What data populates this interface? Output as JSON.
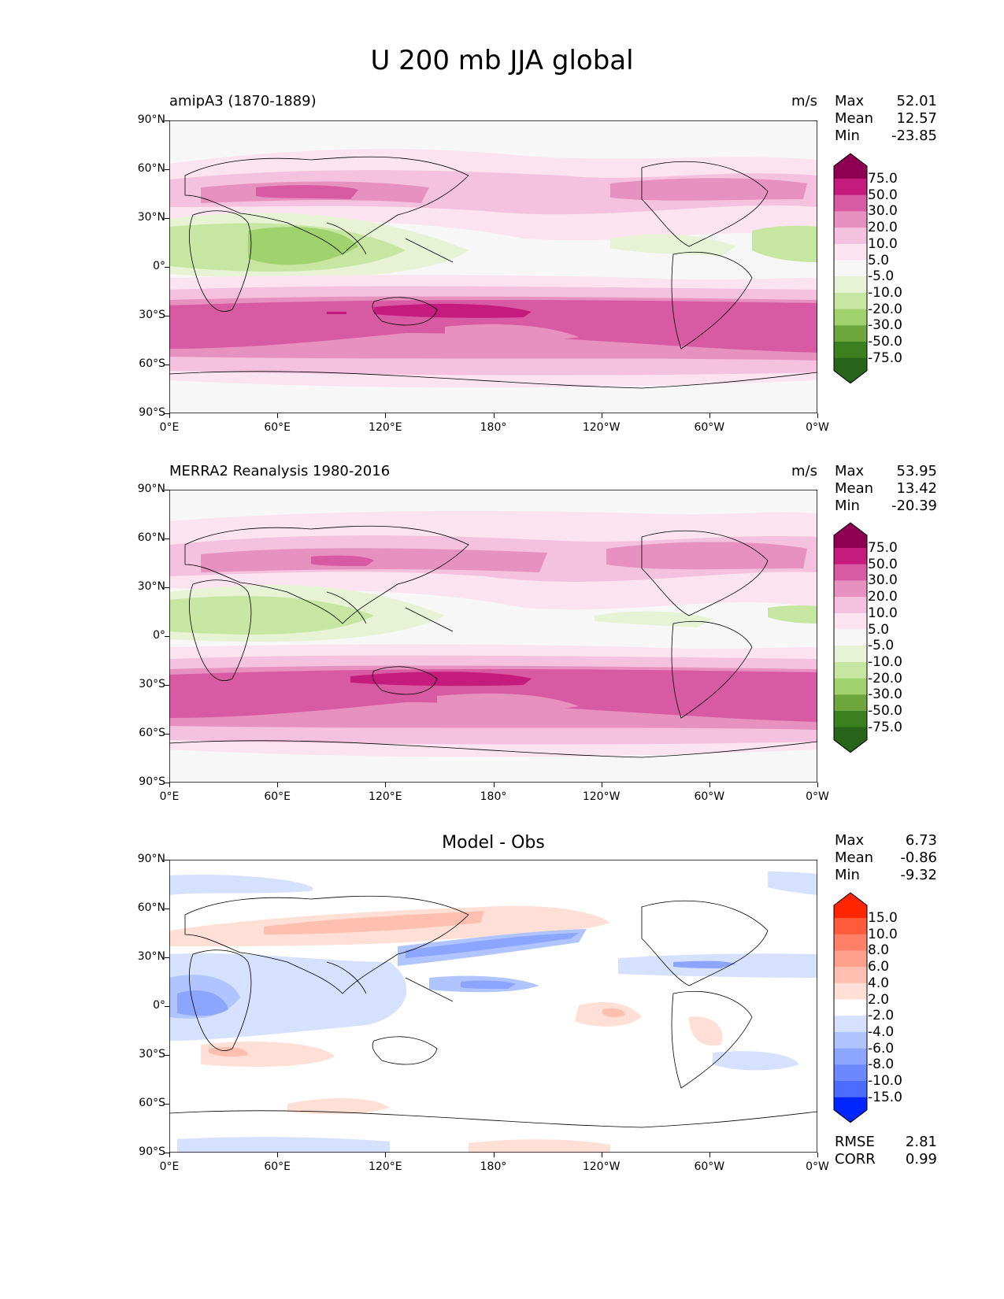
{
  "title": "U 200 mb JJA global",
  "y_ticks": [
    "90°N",
    "60°N",
    "30°N",
    "0°",
    "30°S",
    "60°S",
    "90°S"
  ],
  "x_ticks": [
    "0°E",
    "60°E",
    "120°E",
    "180°",
    "120°W",
    "60°W",
    "0°W"
  ],
  "panels": [
    {
      "title": "amipA3 (1870-1889)",
      "units": "m/s",
      "stats": {
        "max_label": "Max",
        "max": "52.01",
        "mean_label": "Mean",
        "mean": "12.57",
        "min_label": "Min",
        "min": "-23.85"
      }
    },
    {
      "title": "MERRA2 Reanalysis 1980-2016",
      "units": "m/s",
      "stats": {
        "max_label": "Max",
        "max": "53.95",
        "mean_label": "Mean",
        "mean": "13.42",
        "min_label": "Min",
        "min": "-20.39"
      }
    },
    {
      "title": "Model - Obs",
      "stats": {
        "max_label": "Max",
        "max": "6.73",
        "mean_label": "Mean",
        "mean": "-0.86",
        "min_label": "Min",
        "min": "-9.32"
      },
      "footer": {
        "rmse_label": "RMSE",
        "rmse": "2.81",
        "corr_label": "CORR",
        "corr": "0.99"
      }
    }
  ],
  "colorbar_main": {
    "labels": [
      "75.0",
      "50.0",
      "30.0",
      "20.0",
      "10.0",
      "5.0",
      "-5.0",
      "-10.0",
      "-20.0",
      "-30.0",
      "-50.0",
      "-75.0"
    ],
    "colors": [
      "#8e0152",
      "#c51b7d",
      "#d75aa3",
      "#e791c1",
      "#f4c2de",
      "#fbe4ef",
      "#f7f7f7",
      "#e7f3d4",
      "#c7e6a2",
      "#a0d36d",
      "#6ca63d",
      "#3c7f1e",
      "#276419"
    ]
  },
  "colorbar_diff": {
    "labels": [
      "15.0",
      "10.0",
      "8.0",
      "6.0",
      "4.0",
      "2.0",
      "-2.0",
      "-4.0",
      "-6.0",
      "-8.0",
      "-10.0",
      "-15.0"
    ],
    "colors": [
      "#ff2600",
      "#fe5a3c",
      "#fe8068",
      "#fea08c",
      "#ffbfb0",
      "#ffdfd6",
      "#ffffff",
      "#d6e0ff",
      "#b0c4ff",
      "#8ca5ff",
      "#6b88ff",
      "#4c6bff",
      "#0026ff"
    ]
  },
  "land_color": "#000000"
}
